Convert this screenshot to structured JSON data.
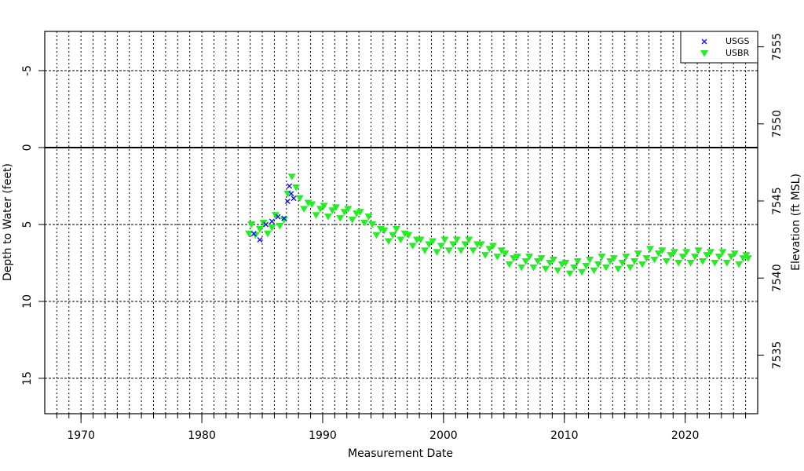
{
  "chart_data": {
    "type": "scatter",
    "x_label": "Measurement Date",
    "y_label": "Depth to Water (feet)",
    "y2_label": "Elevation (ft MSL)",
    "xlim": [
      1967,
      2026
    ],
    "xticks": [
      1970,
      1980,
      1990,
      2000,
      2010,
      2020
    ],
    "xminorticks": [
      1968,
      1969,
      1970,
      1971,
      1972,
      1973,
      1974,
      1975,
      1976,
      1977,
      1978,
      1979,
      1980,
      1981,
      1982,
      1983,
      1984,
      1985,
      1986,
      1987,
      1988,
      1989,
      1990,
      1991,
      1992,
      1993,
      1994,
      1995,
      1996,
      1997,
      1998,
      1999,
      2000,
      2001,
      2002,
      2003,
      2004,
      2005,
      2006,
      2007,
      2008,
      2009,
      2010,
      2011,
      2012,
      2013,
      2014,
      2015,
      2016,
      2017,
      2018,
      2019,
      2020,
      2021,
      2022,
      2023,
      2024,
      2025
    ],
    "ylim": [
      -7.55,
      17.3
    ],
    "yticks": [
      -5,
      0,
      5,
      10,
      15
    ],
    "yinvert": true,
    "reference_line": 0,
    "y2lim": [
      7531.2,
      7556.0
    ],
    "y2ticks": [
      7535,
      7540,
      7545,
      7550,
      7555
    ],
    "grid": true,
    "legend": "top-right",
    "series": [
      {
        "name": "USGS",
        "color": "#1010ff",
        "marker": "x",
        "x": [
          1984.3,
          1984.8,
          1985.3,
          1985.8,
          1986.3,
          1986.8,
          1987.1,
          1987.25,
          1987.4,
          1987.6
        ],
        "values": [
          5.6,
          6.0,
          5.0,
          4.8,
          4.5,
          4.6,
          3.5,
          2.5,
          3.0,
          3.3
        ]
      },
      {
        "name": "USBR",
        "color": "#22ee22",
        "marker": "triangle-down",
        "x": [
          1983.9,
          1984.1,
          1984.45,
          1984.8,
          1985.1,
          1985.45,
          1985.8,
          1986.1,
          1986.45,
          1986.8,
          1987.1,
          1987.45,
          1987.8,
          1988.1,
          1988.45,
          1988.8,
          1989.1,
          1989.45,
          1989.8,
          1990.1,
          1990.45,
          1990.8,
          1991.1,
          1991.45,
          1991.8,
          1992.1,
          1992.45,
          1992.8,
          1993.1,
          1993.45,
          1993.8,
          1994.1,
          1994.45,
          1994.8,
          1995.1,
          1995.45,
          1995.8,
          1996.1,
          1996.45,
          1996.8,
          1997.1,
          1997.45,
          1997.8,
          1998.1,
          1998.45,
          1998.8,
          1999.1,
          1999.45,
          1999.8,
          2000.1,
          2000.45,
          2000.8,
          2001.1,
          2001.45,
          2001.8,
          2002.1,
          2002.45,
          2002.8,
          2003.1,
          2003.45,
          2003.8,
          2004.1,
          2004.45,
          2004.8,
          2005.1,
          2005.45,
          2005.8,
          2006.1,
          2006.45,
          2006.8,
          2007.1,
          2007.45,
          2007.8,
          2008.1,
          2008.45,
          2008.8,
          2009.1,
          2009.45,
          2009.8,
          2010.1,
          2010.45,
          2010.8,
          2011.1,
          2011.45,
          2011.8,
          2012.1,
          2012.45,
          2012.8,
          2013.1,
          2013.45,
          2013.8,
          2014.1,
          2014.45,
          2014.8,
          2015.1,
          2015.45,
          2015.8,
          2016.1,
          2016.45,
          2016.8,
          2017.1,
          2017.45,
          2017.8,
          2018.1,
          2018.45,
          2018.8,
          2019.1,
          2019.45,
          2019.8,
          2020.1,
          2020.45,
          2020.8,
          2021.1,
          2021.45,
          2021.8,
          2022.1,
          2022.45,
          2022.8,
          2023.1,
          2023.45,
          2023.8,
          2024.1,
          2024.45,
          2024.8,
          2025.05,
          2025.2
        ],
        "values": [
          5.6,
          5.0,
          5.7,
          5.3,
          4.9,
          5.6,
          5.2,
          4.4,
          5.1,
          4.7,
          3.0,
          1.9,
          2.6,
          3.3,
          4.0,
          3.6,
          3.7,
          4.4,
          4.0,
          3.8,
          4.5,
          4.1,
          3.9,
          4.6,
          4.2,
          4.0,
          4.7,
          4.3,
          4.2,
          4.9,
          4.5,
          5.0,
          5.7,
          5.3,
          5.4,
          6.1,
          5.7,
          5.3,
          6.0,
          5.6,
          5.7,
          6.4,
          6.0,
          6.0,
          6.7,
          6.3,
          6.1,
          6.8,
          6.4,
          6.0,
          6.7,
          6.3,
          6.0,
          6.7,
          6.3,
          6.0,
          6.7,
          6.3,
          6.3,
          7.0,
          6.6,
          6.4,
          7.1,
          6.7,
          6.9,
          7.6,
          7.2,
          7.1,
          7.8,
          7.4,
          7.1,
          7.8,
          7.4,
          7.2,
          7.9,
          7.5,
          7.3,
          8.0,
          7.6,
          7.5,
          8.2,
          7.8,
          7.4,
          8.1,
          7.7,
          7.3,
          8.0,
          7.6,
          7.1,
          7.8,
          7.4,
          7.2,
          7.9,
          7.5,
          7.1,
          7.8,
          7.4,
          6.9,
          7.6,
          7.2,
          6.6,
          7.3,
          6.9,
          6.7,
          7.4,
          7.0,
          6.8,
          7.5,
          7.1,
          6.8,
          7.5,
          7.1,
          6.7,
          7.4,
          7.0,
          6.8,
          7.5,
          7.1,
          6.8,
          7.5,
          7.1,
          6.9,
          7.6,
          7.2,
          7.0,
          7.2
        ]
      }
    ]
  }
}
